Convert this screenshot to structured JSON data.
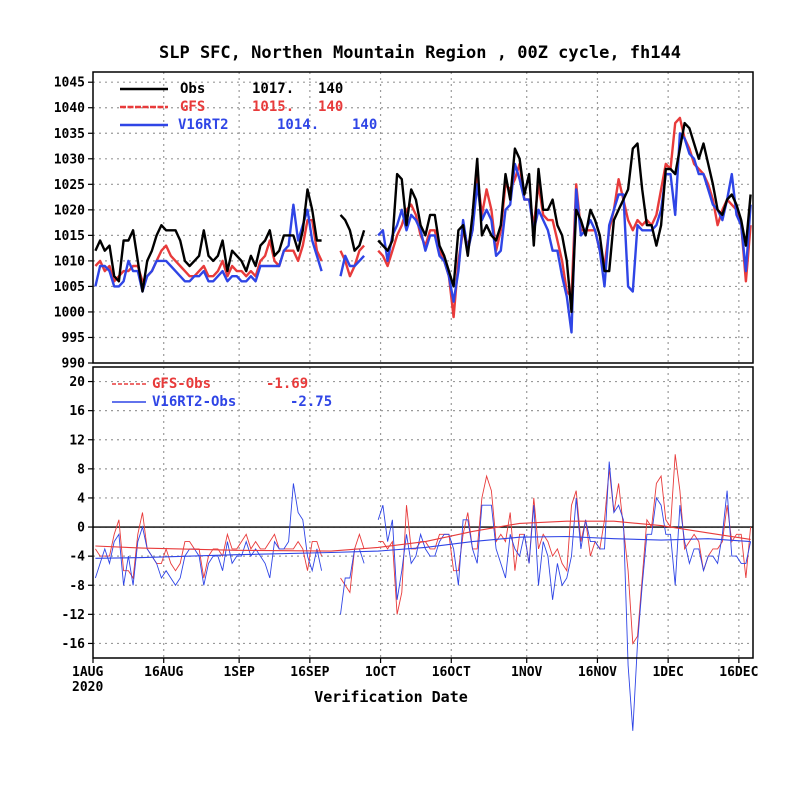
{
  "chart_data": [
    {
      "type": "line",
      "title": "SLP SFC, Northen Mountain Region , 00Z cycle, fh144",
      "ylim": [
        990,
        1047
      ],
      "yticks": [
        "990",
        "995",
        "1000",
        "1005",
        "1010",
        "1015",
        "1020",
        "1025",
        "1030",
        "1035",
        "1040",
        "1045"
      ],
      "grid": true,
      "legend_position": "top-left",
      "series": [
        {
          "name": "Obs",
          "mean": "1017.",
          "count": "140",
          "color": "#000000",
          "values": [
            1012,
            1014,
            1012,
            1013,
            1007,
            1006,
            1014,
            1014,
            1016,
            1010,
            1004,
            1010,
            1012,
            1015,
            1017,
            1016,
            1016,
            1016,
            1014,
            1010,
            1009,
            1010,
            1011,
            1016,
            1011,
            1010,
            1011,
            1014,
            1008,
            1012,
            1011,
            1010,
            1008,
            1011,
            1009,
            1013,
            1014,
            1016,
            1011,
            1012,
            1015,
            1015,
            1015,
            1012,
            1016,
            1024,
            1020,
            1014,
            1014,
            null,
            null,
            null,
            1019,
            1018,
            1016,
            1012,
            1013,
            1016,
            null,
            null,
            1014,
            1013,
            1012,
            1014,
            1027,
            1026,
            1017,
            1024,
            1022,
            1017,
            1015,
            1019,
            1019,
            1013,
            1011,
            1008,
            1005,
            1016,
            1017,
            1011,
            1019,
            1030,
            1015,
            1017,
            1015,
            1014,
            1017,
            1027,
            1022,
            1032,
            1030,
            1023,
            1027,
            1013,
            1028,
            1020,
            1020,
            1022,
            1017,
            1015,
            1010,
            1000,
            1020,
            1018,
            1015,
            1020,
            1018,
            1015,
            1008,
            1008,
            1018,
            1020,
            1022,
            1024,
            1032,
            1033,
            1024,
            1017,
            1017,
            1013,
            1017,
            1028,
            1028,
            1027,
            1032,
            1037,
            1036,
            1033,
            1030,
            1033,
            1029,
            1025,
            1020,
            1019,
            1022,
            1023,
            1021,
            1018,
            1013,
            1023
          ]
        },
        {
          "name": "GFS",
          "mean": "1015.",
          "count": "140",
          "color": "#e83b3b",
          "values": [
            1009,
            1010,
            1008,
            1009,
            1006,
            1007,
            1008,
            1008,
            1009,
            1009,
            1006,
            1007,
            1008,
            1010,
            1012,
            1013,
            1011,
            1010,
            1009,
            1008,
            1007,
            1007,
            1008,
            1009,
            1007,
            1007,
            1008,
            1010,
            1007,
            1009,
            1008,
            1008,
            1007,
            1008,
            1007,
            1010,
            1011,
            1014,
            1010,
            1009,
            1012,
            1012,
            1012,
            1010,
            1013,
            1018,
            1018,
            1012,
            1010,
            null,
            null,
            null,
            1012,
            1010,
            1007,
            1009,
            1012,
            1013,
            null,
            null,
            1012,
            1011,
            1009,
            1012,
            1015,
            1017,
            1020,
            1021,
            1019,
            1015,
            1013,
            1016,
            1016,
            1012,
            1010,
            1007,
            999,
            1010,
            1016,
            1013,
            1016,
            1027,
            1019,
            1024,
            1020,
            1012,
            1016,
            1025,
            1024,
            1026,
            1029,
            1022,
            1022,
            1017,
            1025,
            1019,
            1018,
            1018,
            1014,
            1010,
            1004,
            1003,
            1025,
            1016,
            1016,
            1016,
            1016,
            1012,
            1009,
            1016,
            1020,
            1026,
            1022,
            1018,
            1016,
            1018,
            1017,
            1018,
            1017,
            1019,
            1024,
            1029,
            1028,
            1037,
            1038,
            1034,
            1032,
            1029,
            1028,
            1027,
            1025,
            1022,
            1017,
            1020,
            1022,
            1021,
            1020,
            1017,
            1006,
            1017
          ]
        },
        {
          "name": "V16RT2",
          "mean": "1014.",
          "count": "140",
          "color": "#2f45e6",
          "values": [
            1005,
            1009,
            1009,
            1008,
            1005,
            1005,
            1006,
            1010,
            1008,
            1008,
            1004,
            1007,
            1008,
            1010,
            1010,
            1010,
            1009,
            1008,
            1007,
            1006,
            1006,
            1007,
            1007,
            1008,
            1006,
            1006,
            1007,
            1008,
            1006,
            1007,
            1007,
            1006,
            1006,
            1007,
            1006,
            1009,
            1009,
            1009,
            1009,
            1009,
            1012,
            1013,
            1021,
            1014,
            1017,
            1020,
            1014,
            1011,
            1008,
            null,
            null,
            null,
            1007,
            1011,
            1009,
            1009,
            1010,
            1011,
            null,
            null,
            1015,
            1016,
            1010,
            1015,
            1017,
            1020,
            1016,
            1019,
            1018,
            1016,
            1012,
            1015,
            1015,
            1011,
            1010,
            1007,
            1002,
            1008,
            1018,
            1012,
            1016,
            1025,
            1018,
            1020,
            1018,
            1011,
            1012,
            1020,
            1021,
            1029,
            1026,
            1022,
            1022,
            1016,
            1020,
            1018,
            1016,
            1012,
            1012,
            1007,
            1003,
            996,
            1024,
            1015,
            1016,
            1018,
            1016,
            1012,
            1005,
            1017,
            1020,
            1023,
            1023,
            1005,
            1004,
            1017,
            1016,
            1016,
            1016,
            1017,
            1020,
            1027,
            1027,
            1019,
            1035,
            1034,
            1031,
            1030,
            1027,
            1027,
            1024,
            1021,
            1020,
            1018,
            1022,
            1027,
            1019,
            1017,
            1008,
            1021
          ]
        }
      ]
    },
    {
      "type": "line",
      "title": "",
      "xlabel": "Verification Date",
      "ylim": [
        -18,
        22
      ],
      "yticks": [
        "-16",
        "-12",
        "-8",
        "-4",
        "0",
        "4",
        "8",
        "12",
        "16",
        "20"
      ],
      "xticks": [
        "1AUG",
        "16AUG",
        "1SEP",
        "16SEP",
        "1OCT",
        "16OCT",
        "1NOV",
        "16NOV",
        "1DEC",
        "16DEC"
      ],
      "xyear": "2020",
      "grid": true,
      "legend_position": "top-left",
      "series": [
        {
          "name": "GFS-Obs",
          "mean": "-1.69",
          "color": "#e83b3b",
          "values": [
            -3,
            -4,
            -4,
            -4,
            -1,
            1,
            -6,
            -6,
            -7,
            -1,
            2,
            -3,
            -4,
            -5,
            -5,
            -3,
            -5,
            -6,
            -5,
            -2,
            -2,
            -3,
            -3,
            -7,
            -4,
            -3,
            -3,
            -4,
            -1,
            -3,
            -3,
            -2,
            -1,
            -3,
            -2,
            -3,
            -3,
            -2,
            -1,
            -3,
            -3,
            -3,
            -3,
            -2,
            -3,
            -6,
            -2,
            -2,
            -4,
            null,
            null,
            null,
            -7,
            -8,
            -9,
            -3,
            -1,
            -3,
            null,
            null,
            -2,
            -2,
            -3,
            -2,
            -12,
            -9,
            3,
            -3,
            -3,
            -2,
            -2,
            -3,
            -3,
            -1,
            -1,
            -1,
            -6,
            -6,
            -1,
            2,
            -3,
            -3,
            4,
            7,
            5,
            -2,
            -1,
            -2,
            2,
            -6,
            -1,
            -1,
            -5,
            4,
            -3,
            -1,
            -2,
            -4,
            -3,
            -5,
            -6,
            3,
            5,
            -2,
            1,
            -4,
            -2,
            -3,
            1,
            8,
            2,
            6,
            0,
            -6,
            -16,
            -15,
            -7,
            1,
            0,
            6,
            7,
            1,
            0,
            10,
            5,
            -3,
            -2,
            -1,
            -2,
            -6,
            -4,
            -3,
            -3,
            -2,
            3,
            -2,
            -1,
            -1,
            -7,
            0
          ]
        },
        {
          "name": "V16RT2-Obs",
          "mean": "-2.75",
          "color": "#2f45e6",
          "values": [
            -7,
            -5,
            -3,
            -5,
            -2,
            -1,
            -8,
            -4,
            -8,
            -2,
            0,
            -3,
            -4,
            -5,
            -7,
            -6,
            -7,
            -8,
            -7,
            -4,
            -3,
            -3,
            -4,
            -8,
            -5,
            -4,
            -4,
            -6,
            -2,
            -5,
            -4,
            -4,
            -2,
            -4,
            -3,
            -4,
            -5,
            -7,
            -2,
            -3,
            -3,
            -2,
            6,
            2,
            1,
            -4,
            -6,
            -3,
            -6,
            null,
            null,
            null,
            -12,
            -7,
            -7,
            -3,
            -3,
            -5,
            null,
            null,
            1,
            3,
            -2,
            1,
            -10,
            -6,
            -1,
            -5,
            -4,
            -1,
            -3,
            -4,
            -4,
            -2,
            -1,
            -1,
            -3,
            -8,
            1,
            1,
            -3,
            -5,
            3,
            3,
            3,
            -3,
            -5,
            -7,
            -1,
            -3,
            -4,
            -1,
            -5,
            3,
            -8,
            -2,
            -4,
            -10,
            -5,
            -8,
            -7,
            -4,
            4,
            -3,
            1,
            -2,
            -2,
            -3,
            -3,
            9,
            2,
            3,
            1,
            -19,
            -28,
            -16,
            -8,
            -1,
            -1,
            4,
            3,
            -1,
            -1,
            -8,
            3,
            -2,
            -5,
            -3,
            -3,
            -6,
            -4,
            -4,
            -5,
            -1,
            5,
            -4,
            -4,
            -5,
            -5,
            -2
          ]
        },
        {
          "name": "GFS-Obs running mean",
          "color": "#e83b3b",
          "anchors_x": [
            0,
            10,
            30,
            50,
            60,
            70,
            80,
            90,
            100,
            110,
            120,
            130,
            139
          ],
          "anchors_y": [
            -2.6,
            -2.9,
            -3.2,
            -3.3,
            -2.8,
            -2.0,
            -0.6,
            0.5,
            0.8,
            0.8,
            0.2,
            -0.8,
            -1.7
          ]
        },
        {
          "name": "V16RT2-Obs running mean",
          "color": "#2f45e6",
          "anchors_x": [
            0,
            10,
            30,
            50,
            60,
            70,
            80,
            90,
            100,
            110,
            120,
            130,
            139
          ],
          "anchors_y": [
            -4.3,
            -4.2,
            -3.8,
            -3.5,
            -3.3,
            -2.8,
            -2.0,
            -1.4,
            -1.3,
            -1.6,
            -1.8,
            -1.6,
            -2.0
          ]
        }
      ]
    }
  ]
}
